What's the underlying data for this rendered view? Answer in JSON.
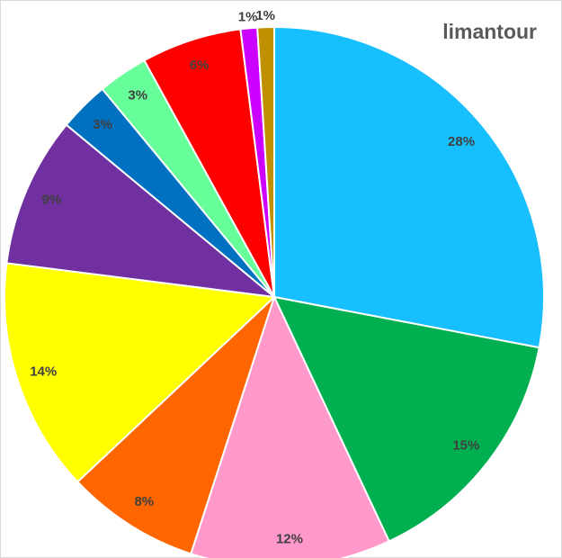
{
  "chart_data": {
    "type": "pie",
    "title": "limantour",
    "values": [
      28,
      15,
      12,
      8,
      14,
      9,
      3,
      3,
      6,
      1,
      1
    ],
    "value_labels": [
      "28%",
      "15%",
      "12%",
      "8%",
      "14%",
      "9%",
      "3%",
      "3%",
      "6%",
      "1%",
      "1%"
    ],
    "colors": [
      "#17bfff",
      "#00b050",
      "#ff99cc",
      "#ff6600",
      "#ffff00",
      "#7030a0",
      "#0070c0",
      "#66ff99",
      "#ff0000",
      "#cc00ff",
      "#c09000"
    ]
  }
}
